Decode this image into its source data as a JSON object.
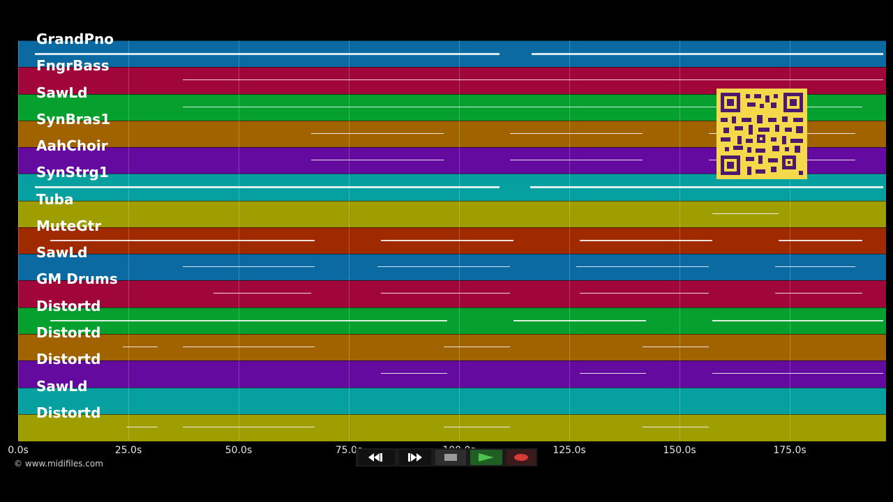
{
  "tracks": [
    {
      "name": "GrandPno",
      "color": "#0a6aa1"
    },
    {
      "name": "FngrBass",
      "color": "#a0063a"
    },
    {
      "name": "SawLd",
      "color": "#05a02e"
    },
    {
      "name": "SynBras1",
      "color": "#a06300"
    },
    {
      "name": "AahChoir",
      "color": "#640a9e"
    },
    {
      "name": "SynStrg1",
      "color": "#06a0a0"
    },
    {
      "name": "Tuba",
      "color": "#9e9e00"
    },
    {
      "name": "MuteGtr",
      "color": "#a02a00"
    },
    {
      "name": "SawLd",
      "color": "#0a6aa1"
    },
    {
      "name": "GM Drums",
      "color": "#a0063a"
    },
    {
      "name": "Distortd",
      "color": "#05a02e"
    },
    {
      "name": "Distortd",
      "color": "#a06300"
    },
    {
      "name": "Distortd",
      "color": "#640a9e"
    },
    {
      "name": "SawLd",
      "color": "#06a0a0"
    },
    {
      "name": "Distortd",
      "color": "#9e9e00"
    }
  ],
  "timeline": {
    "ticks": [
      "0.0s",
      "25.0s",
      "50.0s",
      "75.0s",
      "100.0s",
      "125.0s",
      "150.0s",
      "175.0s"
    ]
  },
  "copyright": "© www.midifiles.com",
  "transport": {
    "buttons": [
      {
        "name": "rewind-button",
        "icon": "rewind-icon"
      },
      {
        "name": "fast-forward-button",
        "icon": "fast-forward-icon"
      },
      {
        "name": "stop-button",
        "icon": "stop-icon"
      },
      {
        "name": "play-button",
        "icon": "play-icon"
      },
      {
        "name": "record-button",
        "icon": "record-icon"
      }
    ]
  },
  "qr_code": {
    "icon": "qr-code-icon",
    "color": "#f5d94a"
  }
}
